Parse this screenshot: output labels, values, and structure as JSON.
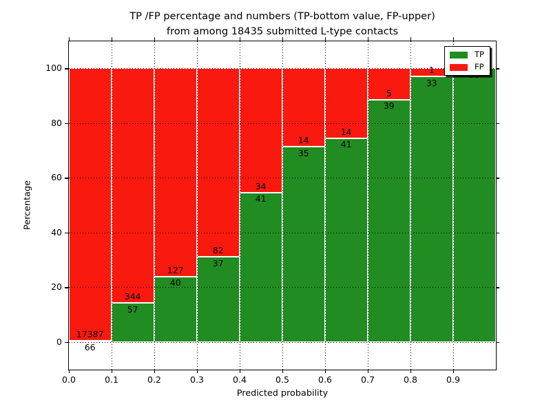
{
  "title": {
    "line1": "TP /FP percentage and numbers (TP-bottom value, FP-upper)",
    "line2": "from among 18435 submitted L-type contacts"
  },
  "axes": {
    "xlabel": "Predicted probability",
    "ylabel": "Percentage",
    "x_tick_labels": [
      "0.0",
      "0.1",
      "0.2",
      "0.3",
      "0.4",
      "0.5",
      "0.6",
      "0.7",
      "0.8",
      "0.9"
    ],
    "y_tick_labels": [
      "0",
      "20",
      "40",
      "60",
      "80",
      "100"
    ]
  },
  "legend": {
    "position": "upper right",
    "items": [
      {
        "label": "TP",
        "color": "#218c21"
      },
      {
        "label": "FP",
        "color": "#fa190f"
      }
    ]
  },
  "colors": {
    "tp": "#218c21",
    "fp": "#fa190f",
    "grid": "#000000",
    "text": "#000000",
    "background": "#ffffff"
  },
  "chart_data": {
    "type": "bar",
    "stacked": true,
    "title": "TP /FP percentage and numbers (TP-bottom value, FP-upper) from among 18435 submitted L-type contacts",
    "xlabel": "Predicted probability",
    "ylabel": "Percentage",
    "total_submitted": 18435,
    "categories": [
      "0.0-0.1",
      "0.1-0.2",
      "0.2-0.3",
      "0.3-0.4",
      "0.4-0.5",
      "0.5-0.6",
      "0.6-0.7",
      "0.7-0.8",
      "0.8-0.9",
      "0.9-1.0"
    ],
    "bin_edges": [
      0.0,
      0.1,
      0.2,
      0.3,
      0.4,
      0.5,
      0.6,
      0.7,
      0.8,
      0.9,
      1.0
    ],
    "series": [
      {
        "name": "TP",
        "counts": [
          66,
          57,
          40,
          37,
          41,
          35,
          41,
          39,
          33,
          38
        ],
        "percent": [
          0.38,
          14.21,
          23.95,
          31.09,
          54.67,
          71.43,
          74.55,
          88.64,
          97.06,
          100.0
        ]
      },
      {
        "name": "FP",
        "counts": [
          17387,
          344,
          127,
          82,
          34,
          14,
          14,
          5,
          1,
          0
        ],
        "percent": [
          99.62,
          85.79,
          76.05,
          68.91,
          45.33,
          28.57,
          25.45,
          11.36,
          2.94,
          0.0
        ]
      }
    ],
    "xlim": [
      0.0,
      1.0
    ],
    "ylim": [
      -10,
      110
    ],
    "grid": true,
    "legend_position": "upper right"
  }
}
